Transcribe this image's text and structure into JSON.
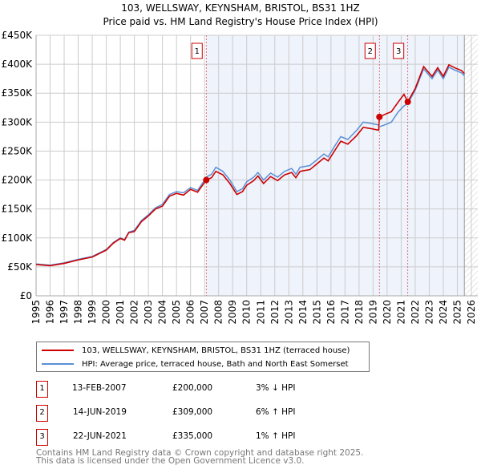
{
  "chart_data": {
    "type": "line",
    "title": "103, WELLSWAY, KEYNSHAM, BRISTOL, BS31 1HZ",
    "subtitle": "Price paid vs. HM Land Registry's House Price Index (HPI)",
    "xlim": [
      1995,
      2026
    ],
    "ylim": [
      0,
      450
    ],
    "y_ticks": [
      0,
      50,
      100,
      150,
      200,
      250,
      300,
      350,
      400,
      450
    ],
    "y_tick_labels": [
      "£0",
      "£50K",
      "£100K",
      "£150K",
      "£200K",
      "£250K",
      "£300K",
      "£350K",
      "£400K",
      "£450K"
    ],
    "x_ticks": [
      "1995",
      "1996",
      "1997",
      "1998",
      "1999",
      "2000",
      "2001",
      "2002",
      "2003",
      "2004",
      "2005",
      "2006",
      "2007",
      "2008",
      "2009",
      "2010",
      "2011",
      "2012",
      "2013",
      "2014",
      "2015",
      "2016",
      "2017",
      "2018",
      "2019",
      "2020",
      "2021",
      "2022",
      "2023",
      "2024",
      "2025",
      "2026"
    ],
    "grid": true,
    "x": [
      1995,
      1995.5,
      1996,
      1997,
      1998,
      1999,
      2000,
      2000.5,
      2001,
      2001.3,
      2001.6,
      2002,
      2002.5,
      2003,
      2003.5,
      2004,
      2004.5,
      2005,
      2005.5,
      2006,
      2006.5,
      2007,
      2007.12,
      2007.5,
      2007.8,
      2008.3,
      2008.8,
      2009.3,
      2009.7,
      2010,
      2010.5,
      2010.8,
      2011.2,
      2011.7,
      2012.2,
      2012.7,
      2013.2,
      2013.5,
      2013.8,
      2014.5,
      2015,
      2015.5,
      2015.8,
      2016.3,
      2016.7,
      2017.2,
      2017.8,
      2018.3,
      2018.8,
      2019.4,
      2019.45,
      2019.8,
      2020.3,
      2020.8,
      2021.2,
      2021.47,
      2022,
      2022.6,
      2023.2,
      2023.6,
      2024,
      2024.4,
      2024.8,
      2025.3,
      2025.5
    ],
    "series": [
      {
        "name": "103, WELLSWAY, KEYNSHAM, BRISTOL, BS31 1HZ (terraced house)",
        "color": "#cc0000",
        "values": [
          54,
          53,
          52,
          56,
          62,
          67,
          79,
          91,
          99,
          96,
          109,
          111,
          128,
          138,
          150,
          155,
          172,
          177,
          174,
          184,
          179,
          196,
          200,
          204,
          215,
          209,
          194,
          175,
          180,
          191,
          199,
          207,
          194,
          206,
          199,
          209,
          213,
          204,
          215,
          218,
          228,
          238,
          233,
          252,
          267,
          262,
          276,
          291,
          289,
          286,
          309,
          313,
          318,
          335,
          348,
          335,
          358,
          396,
          379,
          394,
          379,
          399,
          394,
          389,
          384
        ]
      },
      {
        "name": "HPI: Average price, terraced house, Bath and North East Somerset",
        "color": "#5b8fd6",
        "values": [
          55,
          54,
          53,
          57,
          63,
          68,
          80,
          92,
          100,
          97,
          110,
          113,
          130,
          140,
          152,
          158,
          175,
          180,
          178,
          187,
          182,
          200,
          205,
          210,
          222,
          215,
          200,
          180,
          185,
          197,
          205,
          213,
          200,
          212,
          205,
          215,
          220,
          210,
          222,
          225,
          235,
          245,
          240,
          260,
          275,
          270,
          285,
          300,
          298,
          295,
          292,
          295,
          300,
          318,
          328,
          332,
          355,
          392,
          375,
          390,
          375,
          395,
          390,
          385,
          380
        ]
      }
    ],
    "sales": [
      {
        "label": "1",
        "x": 2007.12,
        "price": 200,
        "date": "13-FEB-2007",
        "price_text": "£200,000",
        "hpi_text": "3% ↓ HPI"
      },
      {
        "label": "2",
        "x": 2019.45,
        "price": 309,
        "date": "14-JUN-2019",
        "price_text": "£309,000",
        "hpi_text": "6% ↑ HPI"
      },
      {
        "label": "3",
        "x": 2021.47,
        "price": 335,
        "date": "22-JUN-2021",
        "price_text": "£335,000",
        "hpi_text": "1% ↑ HPI"
      }
    ],
    "shaded_from": 2007.12,
    "forecast_from": 2025.5
  },
  "footer": [
    "Contains HM Land Registry data © Crown copyright and database right 2025.",
    "This data is licensed under the Open Government Licence v3.0."
  ]
}
